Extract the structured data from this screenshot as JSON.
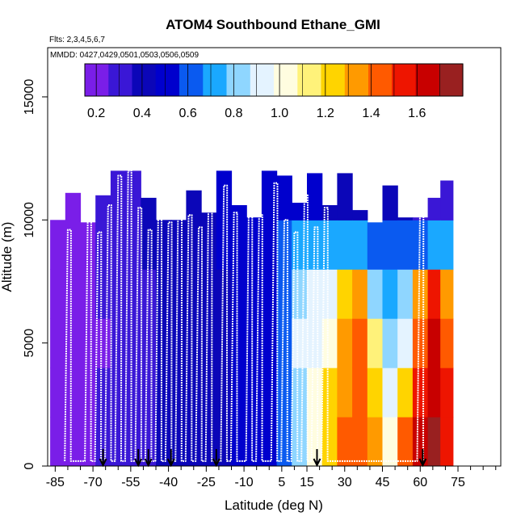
{
  "chart_data": {
    "type": "heatmap",
    "title": "ATOM4 Southbound Ethane_GMI",
    "flights_note": "Flts: 2,3,4,5,6,7",
    "dates_note": "MMDD: 0427,0429,0501,0503,0506,0509",
    "xlabel": "Latitude (deg N)",
    "ylabel": "Altitude (m)",
    "xlim": [
      -88,
      92
    ],
    "ylim": [
      0,
      17000
    ],
    "x_ticks": [
      -85,
      -70,
      -55,
      -40,
      -25,
      -10,
      5,
      15,
      30,
      45,
      60,
      75
    ],
    "x_ticks_minor": [
      -80,
      -75,
      -65,
      -60,
      -50,
      -45,
      -35,
      -30,
      -20,
      -15,
      -5,
      0,
      10,
      20,
      25,
      35,
      40,
      50,
      55,
      65,
      70,
      80,
      85,
      90
    ],
    "y_ticks": [
      0,
      5000,
      10000,
      15000
    ],
    "colorbar": {
      "range": [
        0.15,
        1.8
      ],
      "ticks": [
        0.2,
        0.4,
        0.6,
        0.8,
        1.0,
        1.2,
        1.4,
        1.6
      ],
      "tick_labels": [
        "0.2",
        "0.4",
        "0.6",
        "0.8",
        "1.0",
        "1.2",
        "1.4",
        "1.6"
      ],
      "colors": [
        "#7a1ee8",
        "#3a17d6",
        "#0b06b8",
        "#0000cd",
        "#0a5af0",
        "#1aa8ff",
        "#8fd6ff",
        "#e4f3ff",
        "#fffde0",
        "#fff27a",
        "#ffd400",
        "#ff9a00",
        "#ff5a00",
        "#ee1500",
        "#c80000",
        "#992020"
      ]
    },
    "ratio_profile": {
      "latitudes": [
        -84,
        -78,
        -72,
        -66,
        -60,
        -54,
        -48,
        -42,
        -36,
        -30,
        -24,
        -18,
        -12,
        -6,
        0,
        6,
        12,
        18,
        24,
        30,
        36,
        42,
        48,
        54,
        60,
        66,
        70
      ],
      "altitude_bins_m": [
        1000,
        3000,
        5000,
        7000,
        9000,
        11000
      ],
      "values": [
        [
          0.17,
          0.17,
          0.16,
          0.17,
          0.18,
          0.19
        ],
        [
          0.19,
          0.19,
          0.18,
          0.19,
          0.2,
          0.21
        ],
        [
          0.22,
          0.22,
          0.21,
          0.22,
          0.23,
          0.24
        ],
        [
          0.26,
          0.26,
          0.25,
          0.26,
          0.27,
          0.28
        ],
        [
          0.3,
          0.3,
          0.29,
          0.3,
          0.31,
          0.32
        ],
        [
          0.33,
          0.33,
          0.32,
          0.33,
          0.34,
          0.35
        ],
        [
          0.35,
          0.35,
          0.34,
          0.35,
          0.36,
          0.37
        ],
        [
          0.37,
          0.37,
          0.36,
          0.37,
          0.38,
          0.39
        ],
        [
          0.38,
          0.38,
          0.38,
          0.38,
          0.39,
          0.4
        ],
        [
          0.4,
          0.4,
          0.4,
          0.4,
          0.41,
          0.42
        ],
        [
          0.42,
          0.42,
          0.42,
          0.42,
          0.43,
          0.44
        ],
        [
          0.44,
          0.44,
          0.44,
          0.45,
          0.46,
          0.47
        ],
        [
          0.46,
          0.46,
          0.47,
          0.47,
          0.48,
          0.49
        ],
        [
          0.49,
          0.49,
          0.5,
          0.5,
          0.51,
          0.52
        ],
        [
          0.52,
          0.53,
          0.53,
          0.54,
          0.55,
          0.5
        ],
        [
          0.6,
          0.62,
          0.64,
          0.62,
          0.58,
          0.5
        ],
        [
          0.85,
          0.86,
          0.88,
          0.85,
          0.75,
          0.55
        ],
        [
          1.05,
          1.0,
          0.95,
          0.9,
          0.75,
          0.5
        ],
        [
          1.25,
          1.2,
          1.05,
          0.88,
          0.68,
          0.45
        ],
        [
          1.4,
          1.35,
          1.3,
          1.2,
          0.7,
          0.45
        ],
        [
          1.45,
          1.42,
          1.4,
          1.32,
          0.75,
          0.42
        ],
        [
          1.38,
          1.25,
          1.1,
          0.85,
          0.62,
          0.4
        ],
        [
          1.05,
          0.95,
          0.85,
          0.75,
          0.6,
          0.38
        ],
        [
          1.45,
          1.2,
          0.95,
          0.8,
          0.6,
          0.36
        ],
        [
          1.6,
          1.55,
          1.45,
          1.3,
          0.65,
          0.35
        ],
        [
          1.7,
          1.68,
          1.62,
          1.5,
          0.7,
          0.3
        ],
        [
          1.55,
          1.5,
          1.45,
          1.35,
          0.7,
          0.3
        ]
      ]
    },
    "flight_profile_ceilings_m": [
      9600,
      10700,
      9500,
      10600,
      11800,
      12000,
      10500,
      9600,
      10800,
      9900,
      12400,
      10200,
      9700,
      12000,
      11400,
      10300,
      11500,
      10200,
      11500,
      10000,
      9500,
      11000,
      9700,
      10500,
      11200
    ],
    "profile_latitudes": [
      -80,
      -72,
      -68,
      -64,
      -60,
      -56,
      -52,
      -48,
      -44,
      -40,
      -36,
      -32,
      -28,
      -24,
      -18,
      -14,
      -8,
      -4,
      2,
      6,
      10,
      14,
      18,
      22,
      60
    ],
    "arrow_latitudes": [
      -66,
      -52,
      -48,
      -39,
      -21,
      19,
      61
    ]
  }
}
